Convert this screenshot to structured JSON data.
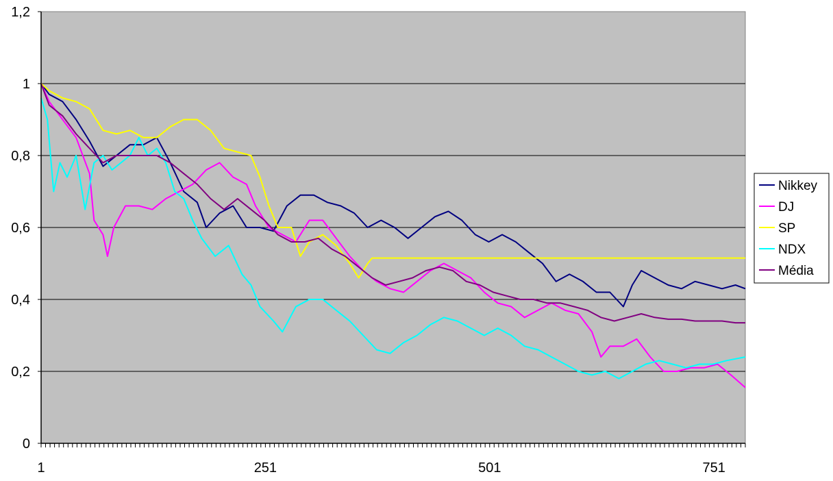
{
  "chart_data": {
    "type": "line",
    "title": "",
    "xlabel": "",
    "ylabel": "",
    "xlim": [
      1,
      786
    ],
    "ylim": [
      0,
      1.2
    ],
    "y_ticks": [
      {
        "value": 0,
        "label": "0"
      },
      {
        "value": 0.2,
        "label": "0,2"
      },
      {
        "value": 0.4,
        "label": "0,4"
      },
      {
        "value": 0.6,
        "label": "0,6"
      },
      {
        "value": 0.8,
        "label": "0,8"
      },
      {
        "value": 1.0,
        "label": "1"
      },
      {
        "value": 1.2,
        "label": "1,2"
      }
    ],
    "x_ticks": [
      {
        "value": 1,
        "label": "1"
      },
      {
        "value": 251,
        "label": "251"
      },
      {
        "value": 501,
        "label": "501"
      },
      {
        "value": 751,
        "label": "751"
      }
    ],
    "grid": "horizontal",
    "plot_background": "#c0c0c0",
    "legend_position": "right",
    "series": [
      {
        "name": "Nikkey",
        "color": "#000080",
        "points": [
          [
            1,
            1.0
          ],
          [
            10,
            0.97
          ],
          [
            25,
            0.95
          ],
          [
            40,
            0.9
          ],
          [
            55,
            0.84
          ],
          [
            70,
            0.77
          ],
          [
            85,
            0.8
          ],
          [
            100,
            0.83
          ],
          [
            115,
            0.83
          ],
          [
            130,
            0.85
          ],
          [
            145,
            0.78
          ],
          [
            160,
            0.7
          ],
          [
            175,
            0.67
          ],
          [
            185,
            0.6
          ],
          [
            200,
            0.64
          ],
          [
            215,
            0.66
          ],
          [
            230,
            0.6
          ],
          [
            245,
            0.6
          ],
          [
            260,
            0.59
          ],
          [
            275,
            0.66
          ],
          [
            290,
            0.69
          ],
          [
            305,
            0.69
          ],
          [
            320,
            0.67
          ],
          [
            335,
            0.66
          ],
          [
            350,
            0.64
          ],
          [
            365,
            0.6
          ],
          [
            380,
            0.62
          ],
          [
            395,
            0.6
          ],
          [
            410,
            0.57
          ],
          [
            425,
            0.6
          ],
          [
            440,
            0.63
          ],
          [
            455,
            0.645
          ],
          [
            470,
            0.62
          ],
          [
            485,
            0.58
          ],
          [
            500,
            0.56
          ],
          [
            515,
            0.58
          ],
          [
            530,
            0.56
          ],
          [
            545,
            0.53
          ],
          [
            560,
            0.5
          ],
          [
            575,
            0.45
          ],
          [
            590,
            0.47
          ],
          [
            605,
            0.45
          ],
          [
            620,
            0.42
          ],
          [
            635,
            0.42
          ],
          [
            650,
            0.38
          ],
          [
            660,
            0.44
          ],
          [
            670,
            0.48
          ],
          [
            685,
            0.46
          ],
          [
            700,
            0.44
          ],
          [
            715,
            0.43
          ],
          [
            730,
            0.45
          ],
          [
            745,
            0.44
          ],
          [
            760,
            0.43
          ],
          [
            775,
            0.44
          ],
          [
            786,
            0.43
          ]
        ]
      },
      {
        "name": "DJ",
        "color": "#ff00ff",
        "points": [
          [
            1,
            1.0
          ],
          [
            10,
            0.95
          ],
          [
            25,
            0.9
          ],
          [
            40,
            0.85
          ],
          [
            55,
            0.75
          ],
          [
            60,
            0.62
          ],
          [
            65,
            0.6
          ],
          [
            70,
            0.58
          ],
          [
            75,
            0.52
          ],
          [
            82,
            0.6
          ],
          [
            95,
            0.66
          ],
          [
            110,
            0.66
          ],
          [
            125,
            0.65
          ],
          [
            140,
            0.68
          ],
          [
            155,
            0.7
          ],
          [
            170,
            0.72
          ],
          [
            185,
            0.76
          ],
          [
            200,
            0.78
          ],
          [
            215,
            0.74
          ],
          [
            230,
            0.72
          ],
          [
            240,
            0.66
          ],
          [
            255,
            0.6
          ],
          [
            270,
            0.58
          ],
          [
            285,
            0.56
          ],
          [
            300,
            0.62
          ],
          [
            315,
            0.62
          ],
          [
            330,
            0.57
          ],
          [
            345,
            0.52
          ],
          [
            360,
            0.48
          ],
          [
            375,
            0.45
          ],
          [
            390,
            0.43
          ],
          [
            405,
            0.42
          ],
          [
            420,
            0.45
          ],
          [
            435,
            0.48
          ],
          [
            450,
            0.5
          ],
          [
            465,
            0.48
          ],
          [
            480,
            0.46
          ],
          [
            495,
            0.42
          ],
          [
            510,
            0.39
          ],
          [
            525,
            0.38
          ],
          [
            540,
            0.35
          ],
          [
            555,
            0.37
          ],
          [
            570,
            0.39
          ],
          [
            585,
            0.37
          ],
          [
            600,
            0.36
          ],
          [
            615,
            0.31
          ],
          [
            625,
            0.24
          ],
          [
            635,
            0.27
          ],
          [
            650,
            0.27
          ],
          [
            665,
            0.29
          ],
          [
            680,
            0.24
          ],
          [
            695,
            0.2
          ],
          [
            710,
            0.2
          ],
          [
            725,
            0.21
          ],
          [
            740,
            0.21
          ],
          [
            755,
            0.22
          ],
          [
            770,
            0.19
          ],
          [
            786,
            0.155
          ]
        ]
      },
      {
        "name": "SP",
        "color": "#ffff00",
        "points": [
          [
            1,
            1.0
          ],
          [
            10,
            0.98
          ],
          [
            25,
            0.96
          ],
          [
            40,
            0.95
          ],
          [
            55,
            0.93
          ],
          [
            70,
            0.87
          ],
          [
            85,
            0.86
          ],
          [
            100,
            0.87
          ],
          [
            115,
            0.85
          ],
          [
            130,
            0.85
          ],
          [
            145,
            0.88
          ],
          [
            160,
            0.9
          ],
          [
            175,
            0.9
          ],
          [
            190,
            0.87
          ],
          [
            205,
            0.82
          ],
          [
            220,
            0.81
          ],
          [
            235,
            0.8
          ],
          [
            245,
            0.74
          ],
          [
            255,
            0.66
          ],
          [
            265,
            0.6
          ],
          [
            280,
            0.6
          ],
          [
            290,
            0.52
          ],
          [
            300,
            0.56
          ],
          [
            315,
            0.58
          ],
          [
            330,
            0.55
          ],
          [
            345,
            0.5
          ],
          [
            355,
            0.46
          ],
          [
            365,
            0.5
          ],
          [
            370,
            0.515
          ],
          [
            786,
            0.515
          ]
        ]
      },
      {
        "name": "NDX",
        "color": "#00ffff",
        "points": [
          [
            1,
            0.96
          ],
          [
            8,
            0.9
          ],
          [
            15,
            0.7
          ],
          [
            22,
            0.78
          ],
          [
            30,
            0.74
          ],
          [
            40,
            0.8
          ],
          [
            50,
            0.65
          ],
          [
            60,
            0.78
          ],
          [
            70,
            0.8
          ],
          [
            80,
            0.76
          ],
          [
            90,
            0.78
          ],
          [
            100,
            0.8
          ],
          [
            110,
            0.85
          ],
          [
            120,
            0.8
          ],
          [
            130,
            0.82
          ],
          [
            140,
            0.78
          ],
          [
            150,
            0.7
          ],
          [
            160,
            0.68
          ],
          [
            170,
            0.62
          ],
          [
            180,
            0.57
          ],
          [
            195,
            0.52
          ],
          [
            210,
            0.55
          ],
          [
            225,
            0.47
          ],
          [
            235,
            0.44
          ],
          [
            245,
            0.38
          ],
          [
            260,
            0.34
          ],
          [
            270,
            0.31
          ],
          [
            285,
            0.38
          ],
          [
            300,
            0.4
          ],
          [
            315,
            0.4
          ],
          [
            330,
            0.37
          ],
          [
            345,
            0.34
          ],
          [
            360,
            0.3
          ],
          [
            375,
            0.26
          ],
          [
            390,
            0.25
          ],
          [
            405,
            0.28
          ],
          [
            420,
            0.3
          ],
          [
            435,
            0.33
          ],
          [
            450,
            0.35
          ],
          [
            465,
            0.34
          ],
          [
            480,
            0.32
          ],
          [
            495,
            0.3
          ],
          [
            510,
            0.32
          ],
          [
            525,
            0.3
          ],
          [
            540,
            0.27
          ],
          [
            555,
            0.26
          ],
          [
            570,
            0.24
          ],
          [
            585,
            0.22
          ],
          [
            600,
            0.2
          ],
          [
            615,
            0.19
          ],
          [
            630,
            0.2
          ],
          [
            645,
            0.18
          ],
          [
            660,
            0.2
          ],
          [
            675,
            0.22
          ],
          [
            690,
            0.23
          ],
          [
            705,
            0.22
          ],
          [
            720,
            0.21
          ],
          [
            735,
            0.22
          ],
          [
            750,
            0.22
          ],
          [
            765,
            0.23
          ],
          [
            786,
            0.24
          ]
        ]
      },
      {
        "name": "Média",
        "color": "#800080",
        "points": [
          [
            1,
            1.0
          ],
          [
            10,
            0.94
          ],
          [
            25,
            0.91
          ],
          [
            40,
            0.86
          ],
          [
            55,
            0.82
          ],
          [
            70,
            0.78
          ],
          [
            85,
            0.8
          ],
          [
            100,
            0.8
          ],
          [
            115,
            0.8
          ],
          [
            130,
            0.8
          ],
          [
            145,
            0.78
          ],
          [
            160,
            0.75
          ],
          [
            175,
            0.72
          ],
          [
            190,
            0.68
          ],
          [
            205,
            0.65
          ],
          [
            220,
            0.68
          ],
          [
            235,
            0.65
          ],
          [
            250,
            0.62
          ],
          [
            265,
            0.58
          ],
          [
            280,
            0.56
          ],
          [
            295,
            0.56
          ],
          [
            310,
            0.57
          ],
          [
            325,
            0.54
          ],
          [
            340,
            0.52
          ],
          [
            355,
            0.49
          ],
          [
            370,
            0.46
          ],
          [
            385,
            0.44
          ],
          [
            400,
            0.45
          ],
          [
            415,
            0.46
          ],
          [
            430,
            0.48
          ],
          [
            445,
            0.49
          ],
          [
            460,
            0.48
          ],
          [
            475,
            0.45
          ],
          [
            490,
            0.44
          ],
          [
            505,
            0.42
          ],
          [
            520,
            0.41
          ],
          [
            535,
            0.4
          ],
          [
            550,
            0.4
          ],
          [
            565,
            0.39
          ],
          [
            580,
            0.39
          ],
          [
            595,
            0.38
          ],
          [
            610,
            0.37
          ],
          [
            625,
            0.35
          ],
          [
            640,
            0.34
          ],
          [
            655,
            0.35
          ],
          [
            670,
            0.36
          ],
          [
            685,
            0.35
          ],
          [
            700,
            0.345
          ],
          [
            715,
            0.345
          ],
          [
            730,
            0.34
          ],
          [
            745,
            0.34
          ],
          [
            760,
            0.34
          ],
          [
            775,
            0.335
          ],
          [
            786,
            0.335
          ]
        ]
      }
    ]
  }
}
